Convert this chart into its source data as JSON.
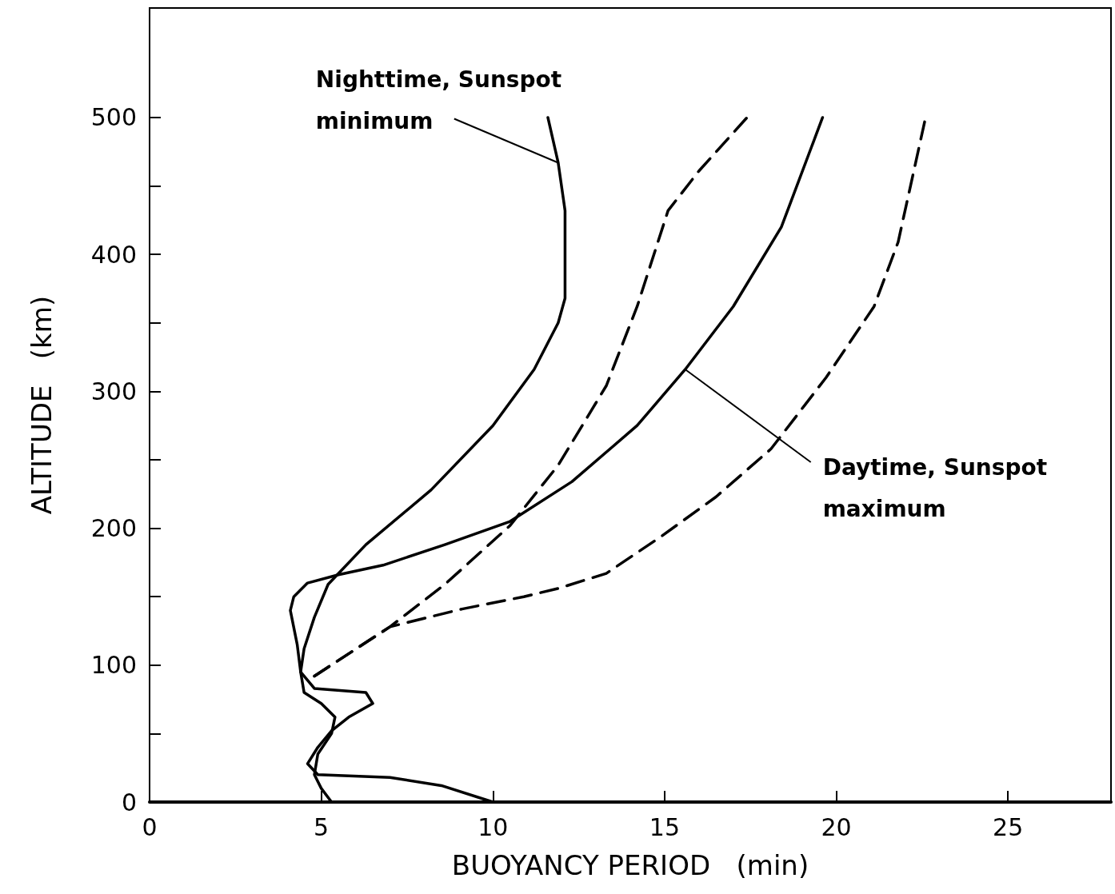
{
  "chart_data": {
    "type": "line",
    "xlabel": "BUOYANCY PERIOD   (min)",
    "ylabel": "ALTITUDE   (km)",
    "xlim": [
      0,
      28
    ],
    "xticks": [
      0,
      5,
      10,
      15,
      20,
      25
    ],
    "ylim": [
      0,
      580
    ],
    "yticks": [
      0,
      {
        "value": 50,
        "label": null
      },
      100,
      {
        "value": 150,
        "label": null
      },
      200,
      {
        "value": 250,
        "label": null
      },
      300,
      {
        "value": 350,
        "label": null
      },
      400,
      {
        "value": 450,
        "label": null
      },
      500
    ],
    "grid": false,
    "marker": "none",
    "series": [
      {
        "color": "#000000",
        "line_style": "solid",
        "x": [
          5.3,
          5.0,
          4.8,
          4.9,
          5.3,
          5.4,
          5.0,
          4.5,
          4.4,
          4.5,
          4.8,
          5.2,
          6.3,
          8.2,
          10.0,
          11.2,
          11.9,
          12.1,
          12.1,
          11.9,
          11.6
        ],
        "values": [
          0,
          10,
          20,
          35,
          50,
          62,
          72,
          80,
          95,
          112,
          135,
          159,
          188,
          228,
          275,
          316,
          350,
          368,
          432,
          467,
          500
        ]
      },
      {
        "color": "#000000",
        "line_style": "dashed",
        "x": [
          4.8,
          7.0,
          8.6,
          10.5,
          11.9,
          13.3,
          14.2,
          15.1,
          16.0,
          17.4
        ],
        "values": [
          92,
          128,
          159,
          202,
          246,
          304,
          362,
          432,
          461,
          500
        ]
      },
      {
        "color": "#000000",
        "line_style": "solid",
        "x": [
          10.0,
          8.5,
          7.0,
          4.9,
          4.6,
          4.9,
          5.3,
          5.8,
          6.5,
          6.3,
          4.8,
          4.4,
          4.3,
          4.1,
          4.2,
          4.6,
          5.5,
          6.8,
          8.6,
          10.5,
          12.3,
          14.2,
          15.6,
          17.0,
          18.4,
          19.6
        ],
        "values": [
          0,
          12,
          18,
          20,
          28,
          40,
          52,
          62,
          72,
          80,
          83,
          95,
          115,
          140,
          150,
          160,
          166,
          173,
          188,
          205,
          234,
          275,
          316,
          362,
          420,
          500
        ]
      },
      {
        "color": "#000000",
        "line_style": "dashed",
        "x": [
          4.8,
          7.0,
          9.1,
          10.9,
          11.9,
          13.3,
          14.9,
          16.5,
          18.1,
          19.7,
          21.1,
          21.8,
          22.6
        ],
        "values": [
          92,
          128,
          141,
          150,
          156,
          167,
          194,
          223,
          258,
          310,
          362,
          409,
          500
        ]
      }
    ],
    "annotations": [
      {
        "text": "Nighttime, Sunspot minimum",
        "x": 11.9,
        "y": 467
      },
      {
        "text": "Daytime, Sunspot maximum",
        "x": 15.6,
        "y": 316
      }
    ]
  }
}
